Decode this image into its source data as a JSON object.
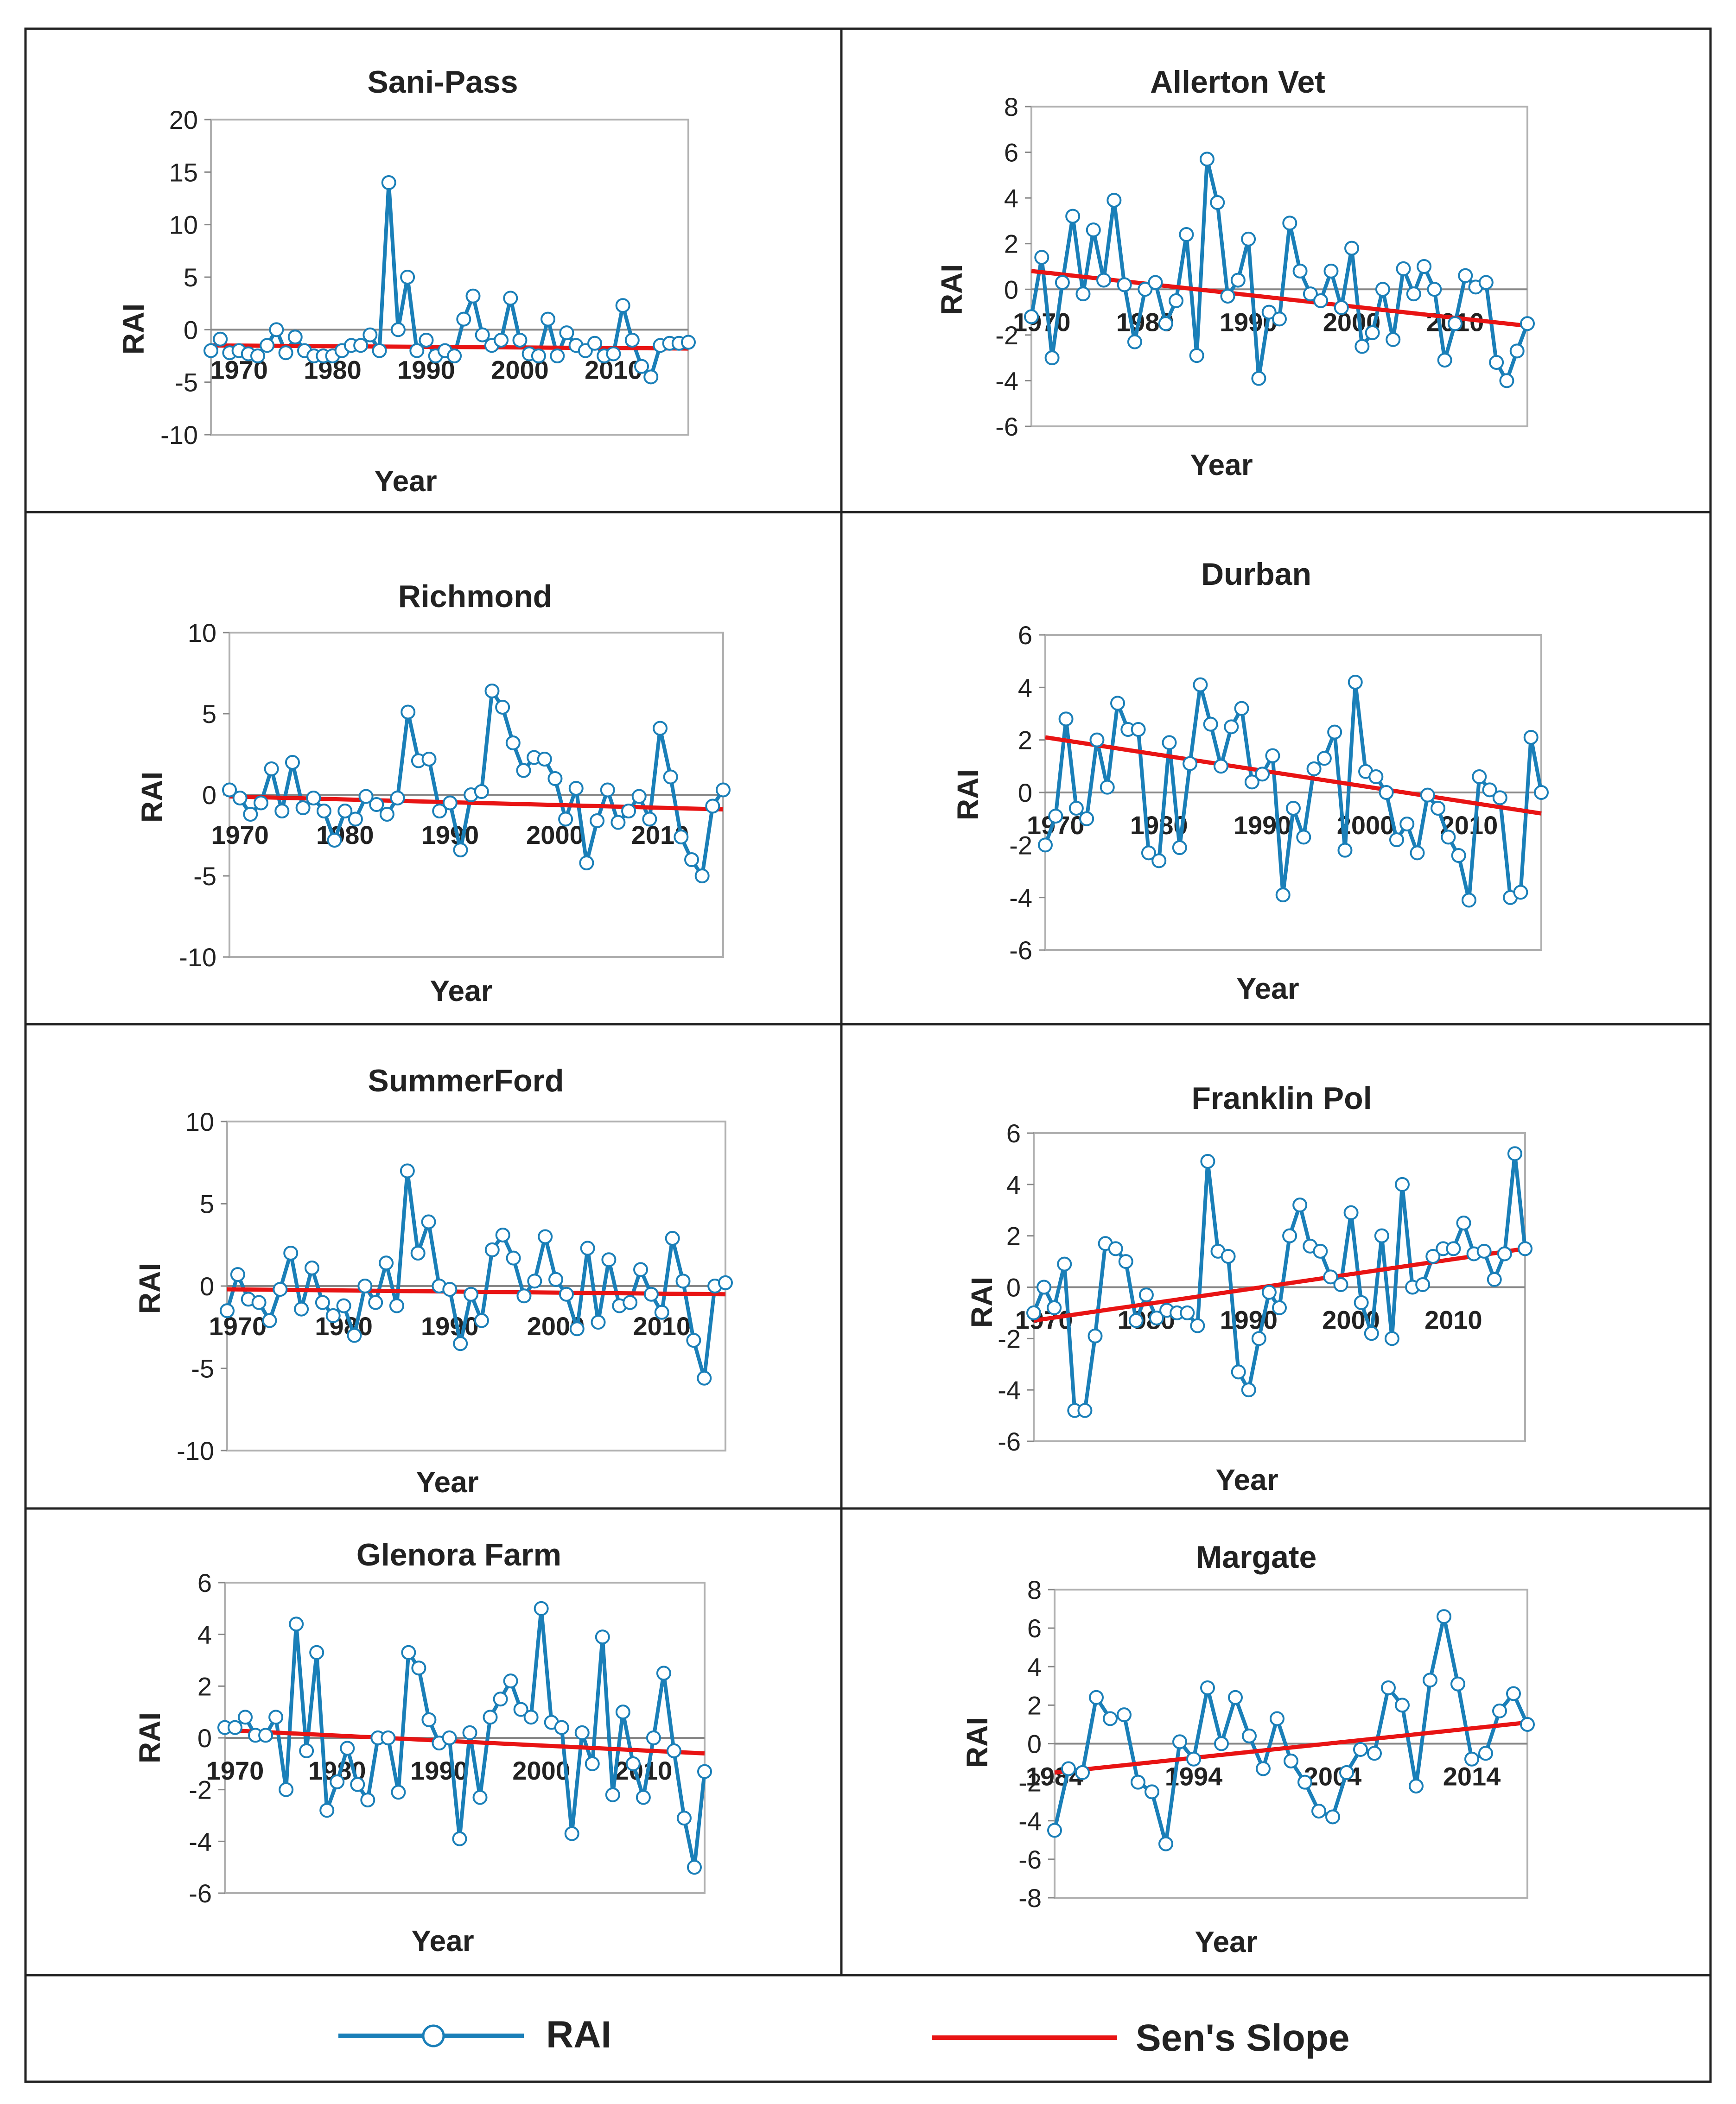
{
  "colors": {
    "rai": "#1A7FB8",
    "slope": "#E81414",
    "grid": "#b0b0b0",
    "axis": "#888888",
    "frame": "#222222"
  },
  "legend": {
    "rai_label": "RAI",
    "slope_label": "Sen's Slope"
  },
  "chart_data": [
    {
      "type": "line",
      "title": "Sani-Pass",
      "xlabel": "Year",
      "ylabel": "RAI",
      "xlim": [
        1967,
        2018
      ],
      "ylim": [
        -10,
        20
      ],
      "yticks": [
        -10,
        -5,
        0,
        5,
        10,
        15,
        20
      ],
      "xticks": [
        1970,
        1980,
        1990,
        2000,
        2010
      ],
      "x": [
        1967,
        1968,
        1969,
        1970,
        1971,
        1972,
        1973,
        1974,
        1975,
        1976,
        1977,
        1978,
        1979,
        1980,
        1981,
        1982,
        1983,
        1984,
        1985,
        1986,
        1987,
        1988,
        1989,
        1990,
        1991,
        1992,
        1993,
        1994,
        1995,
        1996,
        1997,
        1998,
        1999,
        2000,
        2001,
        2002,
        2003,
        2004,
        2005,
        2006,
        2007,
        2008,
        2009,
        2010,
        2011,
        2012,
        2013,
        2014,
        2015,
        2016,
        2017,
        2018
      ],
      "series": [
        {
          "name": "RAI",
          "values": [
            -2.0,
            -0.9,
            -2.2,
            -2.0,
            -2.3,
            -2.5,
            -1.5,
            0,
            -2.2,
            -0.7,
            -2.0,
            -2.5,
            -2.5,
            -2.5,
            -2.0,
            -1.5,
            -1.5,
            -0.5,
            -2.0,
            14.0,
            0,
            5.0,
            -2.0,
            -1.0,
            -2.5,
            -2.0,
            -2.5,
            1.0,
            3.2,
            -0.5,
            -1.5,
            -1.0,
            3.0,
            -1.0,
            -2.3,
            -2.5,
            1.0,
            -2.5,
            -0.3,
            -1.5,
            -2.0,
            -1.3,
            -2.5,
            -2.3,
            2.3,
            -1.0,
            -3.5,
            -4.5,
            -1.5,
            -1.3,
            -1.3,
            -1.2
          ]
        },
        {
          "name": "Sen's Slope",
          "start": [
            1967,
            -1.5
          ],
          "end": [
            2018,
            -1.8
          ]
        }
      ]
    },
    {
      "type": "line",
      "title": "Allerton Vet",
      "xlabel": "Year",
      "ylabel": "RAI",
      "xlim": [
        1969,
        2017
      ],
      "ylim": [
        -6,
        8
      ],
      "yticks": [
        -6,
        -4,
        -2,
        0,
        2,
        4,
        6,
        8
      ],
      "xticks": [
        1970,
        1980,
        1990,
        2000,
        2010
      ],
      "x": [
        1969,
        1970,
        1971,
        1972,
        1973,
        1974,
        1975,
        1976,
        1977,
        1978,
        1979,
        1980,
        1981,
        1982,
        1983,
        1984,
        1985,
        1986,
        1987,
        1988,
        1989,
        1990,
        1991,
        1992,
        1993,
        1994,
        1995,
        1996,
        1997,
        1998,
        1999,
        2000,
        2001,
        2002,
        2003,
        2004,
        2005,
        2006,
        2007,
        2008,
        2009,
        2010,
        2011,
        2012,
        2013,
        2014,
        2015,
        2016,
        2017
      ],
      "series": [
        {
          "name": "RAI",
          "values": [
            -1.2,
            1.4,
            -3.0,
            0.3,
            3.2,
            -0.2,
            2.6,
            0.4,
            3.9,
            0.2,
            -2.3,
            0,
            0.3,
            -1.5,
            -0.5,
            2.4,
            -2.9,
            5.7,
            3.8,
            -0.3,
            0.4,
            2.2,
            -3.9,
            -1.0,
            -1.3,
            2.9,
            0.8,
            -0.2,
            -0.5,
            0.8,
            -0.8,
            1.8,
            -2.5,
            -1.9,
            0,
            -2.2,
            0.9,
            -0.2,
            1.0,
            0,
            -3.1,
            -1.5,
            0.6,
            0.1,
            0.3,
            -3.2,
            -4.0,
            -2.7,
            -1.5
          ]
        },
        {
          "name": "Sen's Slope",
          "start": [
            1969,
            0.8
          ],
          "end": [
            2017,
            -1.6
          ]
        }
      ]
    },
    {
      "type": "line",
      "title": "Richmond",
      "xlabel": "Year",
      "ylabel": "RAI",
      "xlim": [
        1969,
        2016
      ],
      "ylim": [
        -10,
        10
      ],
      "yticks": [
        -10,
        -5,
        0,
        5,
        10
      ],
      "xticks": [
        1970,
        1980,
        1990,
        2000,
        2010
      ],
      "x": [
        1969,
        1970,
        1971,
        1972,
        1973,
        1974,
        1975,
        1976,
        1977,
        1978,
        1979,
        1980,
        1981,
        1982,
        1983,
        1984,
        1985,
        1986,
        1987,
        1988,
        1989,
        1990,
        1991,
        1992,
        1993,
        1994,
        1995,
        1996,
        1997,
        1998,
        1999,
        2000,
        2001,
        2002,
        2003,
        2004,
        2005,
        2006,
        2007,
        2008,
        2009,
        2010,
        2011,
        2012,
        2013,
        2014,
        2015,
        2016
      ],
      "series": [
        {
          "name": "RAI",
          "values": [
            0.3,
            -0.2,
            -1.2,
            -0.5,
            1.6,
            -1.0,
            2.0,
            -0.8,
            -0.2,
            -1.0,
            -2.8,
            -1.0,
            -1.5,
            -0.1,
            -0.6,
            -1.2,
            -0.2,
            5.1,
            2.1,
            2.2,
            -1.0,
            -0.5,
            -3.4,
            0,
            0.2,
            6.4,
            5.4,
            3.2,
            1.5,
            2.3,
            2.2,
            1.0,
            -1.5,
            0.4,
            -4.2,
            -1.6,
            0.3,
            -1.7,
            -1.0,
            -0.1,
            -1.5,
            4.1,
            1.1,
            -2.6,
            -4.0,
            -5.0,
            -0.7,
            0.3
          ]
        },
        {
          "name": "Sen's Slope",
          "start": [
            1969,
            -0.1
          ],
          "end": [
            2016,
            -0.9
          ]
        }
      ]
    },
    {
      "type": "line",
      "title": "Durban",
      "xlabel": "Year",
      "ylabel": "RAI",
      "xlim": [
        1969,
        2017
      ],
      "ylim": [
        -6,
        6
      ],
      "yticks": [
        -6,
        -4,
        -2,
        0,
        2,
        4,
        6
      ],
      "xticks": [
        1970,
        1980,
        1990,
        2000,
        2010
      ],
      "x": [
        1969,
        1970,
        1971,
        1972,
        1973,
        1974,
        1975,
        1976,
        1977,
        1978,
        1979,
        1980,
        1981,
        1982,
        1983,
        1984,
        1985,
        1986,
        1987,
        1988,
        1989,
        1990,
        1991,
        1992,
        1993,
        1994,
        1995,
        1996,
        1997,
        1998,
        1999,
        2000,
        2001,
        2002,
        2003,
        2004,
        2005,
        2006,
        2007,
        2008,
        2009,
        2010,
        2011,
        2012,
        2013,
        2014,
        2015,
        2016,
        2017
      ],
      "series": [
        {
          "name": "RAI",
          "values": [
            -2.0,
            -0.9,
            2.8,
            -0.6,
            -1.0,
            2.0,
            0.2,
            3.4,
            2.4,
            2.4,
            -2.3,
            -2.6,
            1.9,
            -2.1,
            1.1,
            4.1,
            2.6,
            1.0,
            2.5,
            3.2,
            0.4,
            0.7,
            1.4,
            -3.9,
            -0.6,
            -1.7,
            0.9,
            1.3,
            2.3,
            -2.2,
            4.2,
            0.8,
            0.6,
            0,
            -1.8,
            -1.2,
            -2.3,
            -0.1,
            -0.6,
            -1.7,
            -2.4,
            -4.1,
            0.6,
            0.1,
            -0.2,
            -4.0,
            -3.8,
            2.1,
            0
          ]
        },
        {
          "name": "Sen's Slope",
          "start": [
            1969,
            2.1
          ],
          "end": [
            2017,
            -0.8
          ]
        }
      ]
    },
    {
      "type": "line",
      "title": "SummerFord",
      "xlabel": "Year",
      "ylabel": "RAI",
      "xlim": [
        1969,
        2016
      ],
      "ylim": [
        -10,
        10
      ],
      "yticks": [
        -10,
        -5,
        0,
        5,
        10
      ],
      "xticks": [
        1970,
        1980,
        1990,
        2000,
        2010
      ],
      "x": [
        1969,
        1970,
        1971,
        1972,
        1973,
        1974,
        1975,
        1976,
        1977,
        1978,
        1979,
        1980,
        1981,
        1982,
        1983,
        1984,
        1985,
        1986,
        1987,
        1988,
        1989,
        1990,
        1991,
        1992,
        1993,
        1994,
        1995,
        1996,
        1997,
        1998,
        1999,
        2000,
        2001,
        2002,
        2003,
        2004,
        2005,
        2006,
        2007,
        2008,
        2009,
        2010,
        2011,
        2012,
        2013,
        2014,
        2015,
        2016
      ],
      "series": [
        {
          "name": "RAI",
          "values": [
            -1.5,
            0.7,
            -0.8,
            -1.0,
            -2.1,
            -0.2,
            2.0,
            -1.4,
            1.1,
            -1.0,
            -1.8,
            -1.2,
            -3.0,
            0,
            -1.0,
            1.4,
            -1.2,
            7.0,
            2.0,
            3.9,
            0,
            -0.2,
            -3.5,
            -0.5,
            -2.1,
            2.2,
            3.1,
            1.7,
            -0.6,
            0.3,
            3.0,
            0.4,
            -0.5,
            -2.6,
            2.3,
            -2.2,
            1.6,
            -1.2,
            -1.0,
            1.0,
            -0.5,
            -1.6,
            2.9,
            0.3,
            -3.3,
            -5.6,
            0,
            0.2
          ]
        },
        {
          "name": "Sen's Slope",
          "start": [
            1969,
            -0.2
          ],
          "end": [
            2016,
            -0.5
          ]
        }
      ]
    },
    {
      "type": "line",
      "title": "Franklin Pol",
      "xlabel": "Year",
      "ylabel": "RAI",
      "xlim": [
        1969,
        2017
      ],
      "ylim": [
        -6,
        6
      ],
      "yticks": [
        -6,
        -4,
        -2,
        0,
        2,
        4,
        6
      ],
      "xticks": [
        1970,
        1980,
        1990,
        2000,
        2010
      ],
      "x": [
        1969,
        1970,
        1971,
        1972,
        1973,
        1974,
        1975,
        1976,
        1977,
        1978,
        1979,
        1980,
        1981,
        1982,
        1983,
        1984,
        1985,
        1986,
        1987,
        1988,
        1989,
        1990,
        1991,
        1992,
        1993,
        1994,
        1995,
        1996,
        1997,
        1998,
        1999,
        2000,
        2001,
        2002,
        2003,
        2004,
        2005,
        2006,
        2007,
        2008,
        2009,
        2010,
        2011,
        2012,
        2013,
        2014,
        2015,
        2016,
        2017
      ],
      "series": [
        {
          "name": "RAI",
          "values": [
            -1.0,
            0,
            -0.8,
            0.9,
            -4.8,
            -4.8,
            -1.9,
            1.7,
            1.5,
            1.0,
            -1.3,
            -0.3,
            -1.2,
            -0.9,
            -1.0,
            -1.0,
            -1.5,
            4.9,
            1.4,
            1.2,
            -3.3,
            -4.0,
            -2.0,
            -0.2,
            -0.8,
            2.0,
            3.2,
            1.6,
            1.4,
            0.4,
            0.1,
            2.9,
            -0.6,
            -1.8,
            2.0,
            -2.0,
            4.0,
            0,
            0.1,
            1.2,
            1.5,
            1.5,
            2.5,
            1.3,
            1.4,
            0.3,
            1.3,
            5.2,
            1.5
          ]
        },
        {
          "name": "Sen's Slope",
          "start": [
            1969,
            -1.3
          ],
          "end": [
            2017,
            1.5
          ]
        }
      ]
    },
    {
      "type": "line",
      "title": "Glenora Farm",
      "xlabel": "Year",
      "ylabel": "RAI",
      "xlim": [
        1969,
        2016
      ],
      "ylim": [
        -6,
        6
      ],
      "yticks": [
        -6,
        -4,
        -2,
        0,
        2,
        4,
        6
      ],
      "xticks": [
        1970,
        1980,
        1990,
        2000,
        2010
      ],
      "x": [
        1969,
        1970,
        1971,
        1972,
        1973,
        1974,
        1975,
        1976,
        1977,
        1978,
        1979,
        1980,
        1981,
        1982,
        1983,
        1984,
        1985,
        1986,
        1987,
        1988,
        1989,
        1990,
        1991,
        1992,
        1993,
        1994,
        1995,
        1996,
        1997,
        1998,
        1999,
        2000,
        2001,
        2002,
        2003,
        2004,
        2005,
        2006,
        2007,
        2008,
        2009,
        2010,
        2011,
        2012,
        2013,
        2014,
        2015,
        2016
      ],
      "series": [
        {
          "name": "RAI",
          "values": [
            0.4,
            0.4,
            0.8,
            0.1,
            0.1,
            0.8,
            -2.0,
            4.4,
            -0.5,
            3.3,
            -2.8,
            -1.7,
            -0.4,
            -1.8,
            -2.4,
            0,
            0,
            -2.1,
            3.3,
            2.7,
            0.7,
            -0.2,
            0,
            -3.9,
            0.2,
            -2.3,
            0.8,
            1.5,
            2.2,
            1.1,
            0.8,
            5.0,
            0.6,
            0.4,
            -3.7,
            0.2,
            -1.0,
            3.9,
            -2.2,
            1.0,
            -1.0,
            -2.3,
            0,
            2.5,
            -0.5,
            -3.1,
            -5.0,
            -1.3
          ]
        },
        {
          "name": "Sen's Slope",
          "start": [
            1969,
            0.3
          ],
          "end": [
            2016,
            -0.6
          ]
        }
      ]
    },
    {
      "type": "line",
      "title": "Margate",
      "xlabel": "Year",
      "ylabel": "RAI",
      "xlim": [
        1984,
        2018
      ],
      "ylim": [
        -8,
        8
      ],
      "yticks": [
        -8,
        -6,
        -4,
        -2,
        0,
        2,
        4,
        6,
        8
      ],
      "xticks": [
        1984,
        1994,
        2004,
        2014
      ],
      "x": [
        1984,
        1985,
        1986,
        1987,
        1988,
        1989,
        1990,
        1991,
        1992,
        1993,
        1994,
        1995,
        1996,
        1997,
        1998,
        1999,
        2000,
        2001,
        2002,
        2003,
        2004,
        2005,
        2006,
        2007,
        2008,
        2009,
        2010,
        2011,
        2012,
        2013,
        2014,
        2015,
        2016,
        2017,
        2018
      ],
      "series": [
        {
          "name": "RAI",
          "values": [
            -4.5,
            -1.3,
            -1.5,
            2.4,
            1.3,
            1.5,
            -2.0,
            -2.5,
            -5.2,
            0.1,
            -0.8,
            2.9,
            0,
            2.4,
            0.4,
            -1.3,
            1.3,
            -0.9,
            -2.0,
            -3.5,
            -3.8,
            -1.5,
            -0.3,
            -0.5,
            2.9,
            2.0,
            -2.2,
            3.3,
            6.6,
            3.1,
            -0.8,
            -0.5,
            1.7,
            2.6,
            1.0
          ]
        },
        {
          "name": "Sen's Slope",
          "start": [
            1984,
            -1.5
          ],
          "end": [
            2018,
            1.1
          ]
        }
      ]
    }
  ]
}
